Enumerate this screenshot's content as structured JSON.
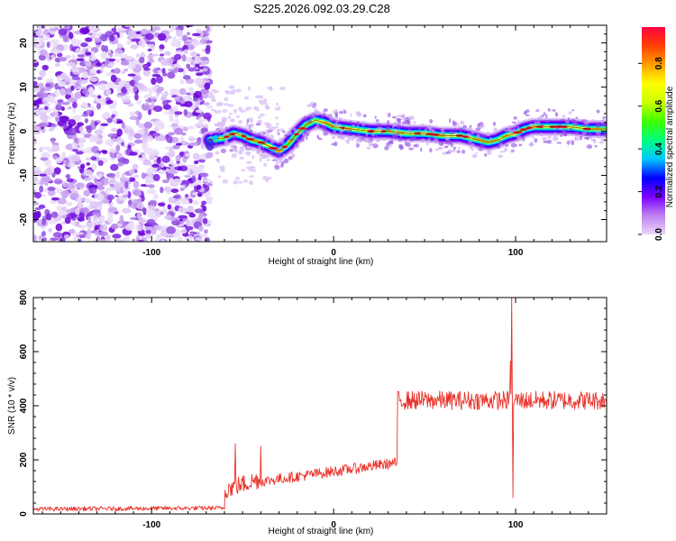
{
  "title": "S225.2026.092.03.29.C28",
  "chart_data": [
    {
      "type": "heatmap",
      "name": "spectrogram",
      "xlabel": "Height of straight line (km)",
      "ylabel": "Frequency (Hz)",
      "xlim": [
        -165,
        150
      ],
      "ylim": [
        -25,
        24
      ],
      "xticks": [
        -100,
        0,
        100
      ],
      "yticks": [
        -20,
        -10,
        0,
        10,
        20
      ],
      "noise_region_x": [
        -165,
        -68
      ],
      "colorbar": {
        "label": "Normalized spectral amplitude",
        "range": [
          0.0,
          0.97
        ],
        "ticks": [
          0.0,
          0.2,
          0.4,
          0.6,
          0.8
        ],
        "tick_labels": [
          "0.0",
          "0.2",
          "0.4",
          "0.6",
          "0.8"
        ],
        "colors": [
          "#e8d8f8",
          "#c080f0",
          "#7a00ff",
          "#0000ff",
          "#00c8ff",
          "#00ff80",
          "#40ff00",
          "#c8ff00",
          "#ffff00",
          "#ffa000",
          "#ff4000",
          "#ff0040"
        ]
      },
      "ridge": {
        "x": [
          -68,
          -60,
          -55,
          -50,
          -45,
          -40,
          -35,
          -30,
          -25,
          -20,
          -15,
          -10,
          -5,
          0,
          10,
          20,
          30,
          40,
          50,
          60,
          70,
          75,
          80,
          85,
          90,
          95,
          100,
          105,
          110,
          120,
          130,
          140,
          150
        ],
        "y": [
          -2,
          -1.5,
          -0.5,
          -1,
          -2,
          -2.5,
          -3.5,
          -4.5,
          -3,
          -0.5,
          1.5,
          2.5,
          2,
          1,
          0.5,
          0,
          0,
          -0.5,
          -0.5,
          -1,
          -1,
          -1.5,
          -2,
          -2.5,
          -2,
          -1,
          -0.5,
          0.5,
          1,
          1,
          1,
          0.5,
          0.5
        ]
      }
    },
    {
      "type": "line",
      "name": "snr",
      "xlabel": "Height of straight line (km)",
      "ylabel": "SNR (10 * v/v)",
      "xlim": [
        -165,
        150
      ],
      "ylim": [
        0,
        800
      ],
      "xticks": [
        -100,
        0,
        100
      ],
      "yticks": [
        0,
        200,
        400,
        600,
        800
      ],
      "color": "#e8322a",
      "segments": [
        {
          "x": [
            -165,
            -60
          ],
          "level": [
            18,
            22
          ],
          "noise": 8
        },
        {
          "x": [
            -60,
            -40
          ],
          "level": [
            90,
            130
          ],
          "noise": 35
        },
        {
          "x": [
            -40,
            35
          ],
          "level": [
            120,
            190
          ],
          "noise": 20
        },
        {
          "x": [
            35,
            150
          ],
          "level": [
            420,
            420
          ],
          "noise": 35
        }
      ],
      "spikes": [
        {
          "x": -54,
          "y": 260
        },
        {
          "x": -40,
          "y": 250
        },
        {
          "x": 97,
          "y": 565
        },
        {
          "x": 98,
          "y": 810
        },
        {
          "x": 98.5,
          "y": 60
        }
      ]
    }
  ]
}
